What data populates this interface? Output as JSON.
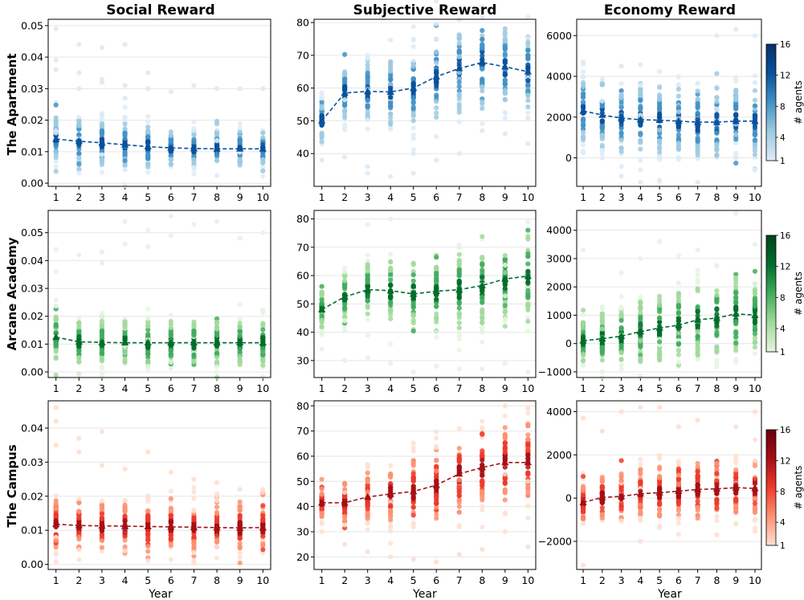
{
  "figure": {
    "column_titles": [
      "Social Reward",
      "Subjective Reward",
      "Economy Reward"
    ],
    "row_labels": [
      "The Apartment",
      "Arcane Academy",
      "The Campus"
    ],
    "xlabel": "Year",
    "colorbar_label": "# agents",
    "colorbar_ticks": [
      "1",
      "4",
      "8",
      "12",
      "16"
    ]
  },
  "colors": {
    "row_palettes": [
      [
        "#deebf7",
        "#9ecae1",
        "#4292c6",
        "#08519c",
        "#08306b"
      ],
      [
        "#e5f5e0",
        "#a1d99b",
        "#41ab5d",
        "#006d2c",
        "#00441b"
      ],
      [
        "#fee0d2",
        "#fc9272",
        "#ef3b2c",
        "#a50f15",
        "#67000d"
      ]
    ],
    "mean_line": [
      "#08519c",
      "#006d2c",
      "#a50f15"
    ],
    "grid": "#e6e6e6"
  },
  "chart_data": [
    {
      "type": "scatter",
      "row": 0,
      "col": 0,
      "x": [
        1,
        2,
        3,
        4,
        5,
        6,
        7,
        8,
        9,
        10
      ],
      "mean": [
        0.014,
        0.0133,
        0.0128,
        0.0122,
        0.0116,
        0.0112,
        0.011,
        0.0109,
        0.0109,
        0.0109
      ],
      "ylim": [
        -0.001,
        0.052
      ],
      "yticks": [
        0,
        0.01,
        0.02,
        0.03,
        0.04,
        0.05
      ],
      "ytick_labels": [
        "0.00",
        "0.01",
        "0.02",
        "0.03",
        "0.04",
        "0.05"
      ],
      "spread": [
        0.005,
        0.005,
        0.005,
        0.005,
        0.005,
        0.004,
        0.004,
        0.004,
        0.004,
        0.004
      ],
      "outliers": [
        [
          1,
          0.049
        ],
        [
          1,
          0.039
        ],
        [
          1,
          0.036
        ],
        [
          2,
          0.044
        ],
        [
          2,
          0.035
        ],
        [
          2,
          0.03
        ],
        [
          3,
          0.043
        ],
        [
          3,
          0.033
        ],
        [
          3,
          0.032
        ],
        [
          4,
          0.044
        ],
        [
          4,
          0.031
        ],
        [
          4,
          0.027
        ],
        [
          5,
          0.035
        ],
        [
          5,
          0.03
        ],
        [
          6,
          0.029
        ],
        [
          7,
          0.031
        ],
        [
          8,
          0.03
        ],
        [
          9,
          0.03
        ],
        [
          10,
          0.03
        ]
      ]
    },
    {
      "type": "scatter",
      "row": 0,
      "col": 1,
      "x": [
        1,
        2,
        3,
        4,
        5,
        6,
        7,
        8,
        9,
        10
      ],
      "mean": [
        50,
        58.5,
        59,
        58.8,
        60,
        63.5,
        66,
        67.8,
        66.5,
        65
      ],
      "ylim": [
        30,
        81
      ],
      "yticks": [
        40,
        50,
        60,
        70,
        80
      ],
      "ytick_labels": [
        "40",
        "50",
        "60",
        "70",
        "80"
      ],
      "spread": [
        4.5,
        6,
        7,
        7.5,
        8,
        9,
        9,
        9,
        8.5,
        8.5
      ],
      "outliers": [
        [
          1,
          38
        ],
        [
          2,
          39
        ],
        [
          3,
          34
        ],
        [
          3,
          36
        ],
        [
          4,
          33
        ],
        [
          5,
          34
        ],
        [
          5,
          40
        ],
        [
          6,
          38
        ],
        [
          7,
          40
        ],
        [
          8,
          47
        ],
        [
          9,
          46
        ],
        [
          10,
          43
        ]
      ]
    },
    {
      "type": "scatter",
      "row": 0,
      "col": 2,
      "x": [
        1,
        2,
        3,
        4,
        5,
        6,
        7,
        8,
        9,
        10
      ],
      "mean": [
        2300,
        2100,
        1950,
        1870,
        1850,
        1800,
        1750,
        1750,
        1800,
        1800
      ],
      "ylim": [
        -1400,
        6800
      ],
      "yticks": [
        0,
        2000,
        4000,
        6000
      ],
      "ytick_labels": [
        "0",
        "2000",
        "4000",
        "6000"
      ],
      "spread": [
        1100,
        1200,
        1200,
        1200,
        1200,
        1200,
        1200,
        1200,
        1200,
        1200
      ],
      "outliers": [
        [
          1,
          4700
        ],
        [
          3,
          4500
        ],
        [
          3,
          -900
        ],
        [
          4,
          -1200
        ],
        [
          5,
          -1100
        ],
        [
          7,
          -1200
        ],
        [
          8,
          6000
        ],
        [
          9,
          6300
        ],
        [
          10,
          6000
        ],
        [
          10,
          -600
        ]
      ]
    },
    {
      "type": "scatter",
      "row": 1,
      "col": 0,
      "x": [
        1,
        2,
        3,
        4,
        5,
        6,
        7,
        8,
        9,
        10
      ],
      "mean": [
        0.0125,
        0.0108,
        0.0106,
        0.0105,
        0.0105,
        0.0105,
        0.0105,
        0.0105,
        0.0105,
        0.0105
      ],
      "ylim": [
        -0.002,
        0.058
      ],
      "yticks": [
        0,
        0.01,
        0.02,
        0.03,
        0.04,
        0.05
      ],
      "ytick_labels": [
        "0.00",
        "0.01",
        "0.02",
        "0.03",
        "0.04",
        "0.05"
      ],
      "spread": [
        0.006,
        0.006,
        0.006,
        0.006,
        0.006,
        0.006,
        0.006,
        0.006,
        0.006,
        0.006
      ],
      "outliers": [
        [
          1,
          0.044
        ],
        [
          1,
          0.036
        ],
        [
          2,
          0.042
        ],
        [
          3,
          0.039
        ],
        [
          3,
          0.043
        ],
        [
          4,
          0.054
        ],
        [
          4,
          0.046
        ],
        [
          5,
          0.051
        ],
        [
          5,
          0.045
        ],
        [
          6,
          0.056
        ],
        [
          6,
          0.049
        ],
        [
          7,
          0.053
        ],
        [
          8,
          0.054
        ],
        [
          9,
          0.048
        ],
        [
          10,
          0.05
        ]
      ]
    },
    {
      "type": "scatter",
      "row": 1,
      "col": 1,
      "x": [
        1,
        2,
        3,
        4,
        5,
        6,
        7,
        8,
        9,
        10
      ],
      "mean": [
        48,
        52.5,
        55,
        54.7,
        53.5,
        54.5,
        55,
        56.5,
        58.8,
        59.8
      ],
      "ylim": [
        24,
        83
      ],
      "yticks": [
        30,
        40,
        50,
        60,
        70,
        80
      ],
      "ytick_labels": [
        "30",
        "40",
        "50",
        "60",
        "70",
        "80"
      ],
      "spread": [
        4.5,
        6,
        7,
        8,
        8.5,
        9.5,
        10,
        10,
        10,
        10
      ],
      "outliers": [
        [
          1,
          34
        ],
        [
          2,
          30
        ],
        [
          3,
          31
        ],
        [
          3,
          78
        ],
        [
          4,
          29
        ],
        [
          4,
          80
        ],
        [
          5,
          26
        ],
        [
          6,
          28
        ],
        [
          7,
          27
        ],
        [
          8,
          27
        ],
        [
          9,
          29
        ],
        [
          10,
          26
        ]
      ]
    },
    {
      "type": "scatter",
      "row": 1,
      "col": 2,
      "x": [
        1,
        2,
        3,
        4,
        5,
        6,
        7,
        8,
        9,
        10
      ],
      "mean": [
        100,
        170,
        260,
        420,
        550,
        650,
        840,
        900,
        1050,
        1000
      ],
      "ylim": [
        -1200,
        4700
      ],
      "yticks": [
        -1000,
        0,
        1000,
        2000,
        3000,
        4000
      ],
      "ytick_labels": [
        "−1000",
        "0",
        "1000",
        "2000",
        "3000",
        "4000"
      ],
      "spread": [
        550,
        650,
        700,
        800,
        850,
        900,
        900,
        900,
        950,
        950
      ],
      "outliers": [
        [
          1,
          3300
        ],
        [
          2,
          -1000
        ],
        [
          3,
          2500
        ],
        [
          4,
          3000
        ],
        [
          5,
          3600
        ],
        [
          6,
          3100
        ],
        [
          7,
          3300
        ],
        [
          8,
          -700
        ],
        [
          9,
          4600
        ],
        [
          10,
          3500
        ]
      ]
    },
    {
      "type": "scatter",
      "row": 2,
      "col": 0,
      "x": [
        1,
        2,
        3,
        4,
        5,
        6,
        7,
        8,
        9,
        10
      ],
      "mean": [
        0.0118,
        0.0114,
        0.0113,
        0.0112,
        0.0111,
        0.011,
        0.0109,
        0.0108,
        0.0107,
        0.0108
      ],
      "ylim": [
        -0.0015,
        0.048
      ],
      "yticks": [
        0,
        0.01,
        0.02,
        0.03,
        0.04
      ],
      "ytick_labels": [
        "0.00",
        "0.01",
        "0.02",
        "0.03",
        "0.04"
      ],
      "spread": [
        0.005,
        0.005,
        0.005,
        0.005,
        0.005,
        0.005,
        0.005,
        0.005,
        0.005,
        0.005
      ],
      "outliers": [
        [
          1,
          0.046
        ],
        [
          1,
          0.042
        ],
        [
          1,
          0.035
        ],
        [
          2,
          0.037
        ],
        [
          2,
          0.033
        ],
        [
          3,
          0.039
        ],
        [
          3,
          0.029
        ],
        [
          4,
          0.028
        ],
        [
          5,
          0.033
        ],
        [
          6,
          0.027
        ],
        [
          7,
          0.025
        ],
        [
          7,
          0.001
        ],
        [
          8,
          0.024
        ],
        [
          9,
          0.022
        ],
        [
          10,
          0.022
        ]
      ]
    },
    {
      "type": "scatter",
      "row": 2,
      "col": 1,
      "x": [
        1,
        2,
        3,
        4,
        5,
        6,
        7,
        8,
        9,
        10
      ],
      "mean": [
        41.5,
        41.5,
        43.8,
        45,
        46,
        48.5,
        53,
        55.5,
        57.5,
        57.5
      ],
      "ylim": [
        15,
        82
      ],
      "yticks": [
        20,
        30,
        40,
        50,
        60,
        70,
        80
      ],
      "ytick_labels": [
        "20",
        "30",
        "40",
        "50",
        "60",
        "70",
        "80"
      ],
      "spread": [
        4,
        6,
        7,
        8,
        9,
        10,
        11,
        11,
        11,
        11
      ],
      "outliers": [
        [
          1,
          30
        ],
        [
          2,
          25
        ],
        [
          3,
          22
        ],
        [
          4,
          20
        ],
        [
          5,
          19
        ],
        [
          6,
          18
        ],
        [
          7,
          21
        ],
        [
          8,
          23
        ],
        [
          9,
          80
        ],
        [
          10,
          79
        ],
        [
          10,
          24
        ]
      ]
    },
    {
      "type": "scatter",
      "row": 2,
      "col": 2,
      "x": [
        1,
        2,
        3,
        4,
        5,
        6,
        7,
        8,
        9,
        10
      ],
      "mean": [
        -200,
        30,
        80,
        200,
        250,
        320,
        400,
        430,
        480,
        450
      ],
      "ylim": [
        -3300,
        4500
      ],
      "yticks": [
        -2000,
        0,
        2000,
        4000
      ],
      "ytick_labels": [
        "−2000",
        "0",
        "2000",
        "4000"
      ],
      "spread": [
        600,
        700,
        750,
        800,
        850,
        850,
        900,
        900,
        900,
        900
      ],
      "outliers": [
        [
          1,
          -3100
        ],
        [
          1,
          3700
        ],
        [
          2,
          3100
        ],
        [
          3,
          4000
        ],
        [
          4,
          4200
        ],
        [
          4,
          -2000
        ],
        [
          5,
          4200
        ],
        [
          6,
          3300
        ],
        [
          7,
          3600
        ],
        [
          8,
          -1700
        ],
        [
          9,
          3300
        ],
        [
          10,
          4000
        ]
      ]
    }
  ]
}
